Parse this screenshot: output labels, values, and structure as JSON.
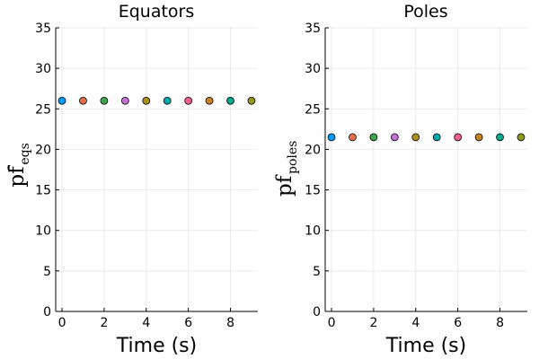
{
  "chart_data": [
    {
      "type": "scatter",
      "title": "Equators",
      "xlabel": "Time (s)",
      "ylabel": {
        "main": "pf",
        "sub": "eqs",
        "bar": true
      },
      "xlim": [
        -0.3,
        9.3
      ],
      "ylim": [
        0,
        35
      ],
      "xticks": [
        0,
        2,
        4,
        6,
        8
      ],
      "xtick_labels": [
        "0",
        "2",
        "4",
        "6",
        "8"
      ],
      "yticks": [
        0,
        5,
        10,
        15,
        20,
        25,
        30,
        35
      ],
      "ytick_labels": [
        "0",
        "5",
        "10",
        "15",
        "20",
        "25",
        "30",
        "35"
      ],
      "grid": true,
      "legend": false,
      "x": [
        0,
        1,
        2,
        3,
        4,
        5,
        6,
        7,
        8,
        9
      ],
      "y": [
        26,
        26,
        26,
        26,
        26,
        26,
        26,
        26,
        26,
        26
      ],
      "colors": [
        "#009AFA",
        "#E36F47",
        "#3EA44E",
        "#C371D2",
        "#AC8E18",
        "#00A9AD",
        "#ED5E93",
        "#C68225",
        "#00A98D",
        "#8E971E"
      ]
    },
    {
      "type": "scatter",
      "title": "Poles",
      "xlabel": "Time (s)",
      "ylabel": {
        "main": "pf",
        "sub": "poles",
        "bar": false
      },
      "xlim": [
        -0.3,
        9.3
      ],
      "ylim": [
        0,
        35
      ],
      "xticks": [
        0,
        2,
        4,
        6,
        8
      ],
      "xtick_labels": [
        "0",
        "2",
        "4",
        "6",
        "8"
      ],
      "yticks": [
        0,
        5,
        10,
        15,
        20,
        25,
        30,
        35
      ],
      "ytick_labels": [
        "0",
        "5",
        "10",
        "15",
        "20",
        "25",
        "30",
        "35"
      ],
      "grid": true,
      "legend": false,
      "x": [
        0,
        1,
        2,
        3,
        4,
        5,
        6,
        7,
        8,
        9
      ],
      "y": [
        21.5,
        21.5,
        21.5,
        21.5,
        21.5,
        21.5,
        21.5,
        21.5,
        21.5,
        21.5
      ],
      "colors": [
        "#009AFA",
        "#E36F47",
        "#3EA44E",
        "#C371D2",
        "#AC8E18",
        "#00A9AD",
        "#ED5E93",
        "#C68225",
        "#00A98D",
        "#8E971E"
      ]
    }
  ]
}
